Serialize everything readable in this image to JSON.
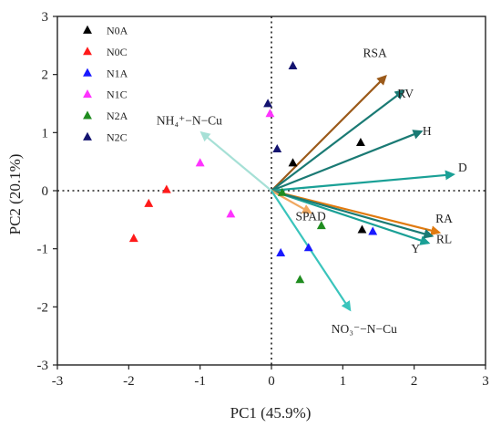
{
  "chart_data": {
    "type": "scatter",
    "subtype": "pca-biplot",
    "title": "",
    "xlabel": "PC1 (45.9%)",
    "ylabel": "PC2 (20.1%)",
    "xlim": [
      -3,
      3
    ],
    "ylim": [
      -3,
      3
    ],
    "xticks": [
      -3,
      -2,
      -1,
      0,
      1,
      2,
      3
    ],
    "yticks": [
      -3,
      -2,
      -1,
      0,
      1,
      2,
      3
    ],
    "grid": false,
    "zero_lines": "dotted",
    "legend_position": "top-left",
    "marker": "triangle",
    "series": [
      {
        "name": "N0A",
        "color": "#000000",
        "points": [
          [
            0.3,
            0.48
          ],
          [
            1.25,
            0.83
          ],
          [
            1.27,
            -0.67
          ]
        ]
      },
      {
        "name": "N0C",
        "color": "#ff1a1a",
        "points": [
          [
            -1.47,
            0.02
          ],
          [
            -1.72,
            -0.22
          ],
          [
            -1.93,
            -0.82
          ]
        ]
      },
      {
        "name": "N1A",
        "color": "#1a1aff",
        "points": [
          [
            0.13,
            -1.07
          ],
          [
            0.52,
            -0.98
          ],
          [
            1.42,
            -0.7
          ]
        ]
      },
      {
        "name": "N1C",
        "color": "#ff33ff",
        "points": [
          [
            -0.02,
            1.33
          ],
          [
            -1.0,
            0.48
          ],
          [
            -0.57,
            -0.4
          ]
        ]
      },
      {
        "name": "N2A",
        "color": "#1f8c1f",
        "points": [
          [
            0.15,
            -0.03
          ],
          [
            0.7,
            -0.6
          ],
          [
            0.4,
            -1.53
          ]
        ]
      },
      {
        "name": "N2C",
        "color": "#141470",
        "points": [
          [
            0.3,
            2.15
          ],
          [
            -0.05,
            1.5
          ],
          [
            0.08,
            0.72
          ]
        ]
      }
    ],
    "loadings": [
      {
        "label": "RSA",
        "x": 1.6,
        "y": 1.97,
        "color": "#9b5a1a"
      },
      {
        "label": "RV",
        "x": 1.85,
        "y": 1.72,
        "color": "#1a7a74"
      },
      {
        "label": "H",
        "x": 2.1,
        "y": 1.02,
        "color": "#1a7a74"
      },
      {
        "label": "D",
        "x": 2.55,
        "y": 0.28,
        "color": "#1aa096"
      },
      {
        "label": "RA",
        "x": 2.35,
        "y": -0.72,
        "color": "#e07a10"
      },
      {
        "label": "RL",
        "x": 2.2,
        "y": -0.9,
        "color": "#1aa096"
      },
      {
        "label": "Y",
        "x": 2.25,
        "y": -0.78,
        "color": "#1a7a74"
      },
      {
        "label": "SPAD",
        "x": 0.55,
        "y": -0.38,
        "color": "#f0a860"
      },
      {
        "label": "NH₄⁺−N−Cu",
        "x": -0.98,
        "y": 1.0,
        "color": "#a6e0d6"
      },
      {
        "label": "NO₃⁻−N−Cu",
        "x": 1.1,
        "y": -2.05,
        "color": "#3ac4bc"
      }
    ]
  },
  "label_placement": {
    "RSA": [
      1.45,
      2.3
    ],
    "RV": [
      1.88,
      1.6
    ],
    "H": [
      2.18,
      0.96
    ],
    "D": [
      2.68,
      0.33
    ],
    "RA": [
      2.42,
      -0.55
    ],
    "RL": [
      2.42,
      -0.9
    ],
    "Y": [
      2.02,
      -1.07
    ],
    "SPAD": [
      0.55,
      -0.51
    ],
    "NH₄⁺−N−Cu": [
      -1.15,
      1.14
    ],
    "NO₃⁻−N−Cu": [
      1.3,
      -2.45
    ]
  }
}
